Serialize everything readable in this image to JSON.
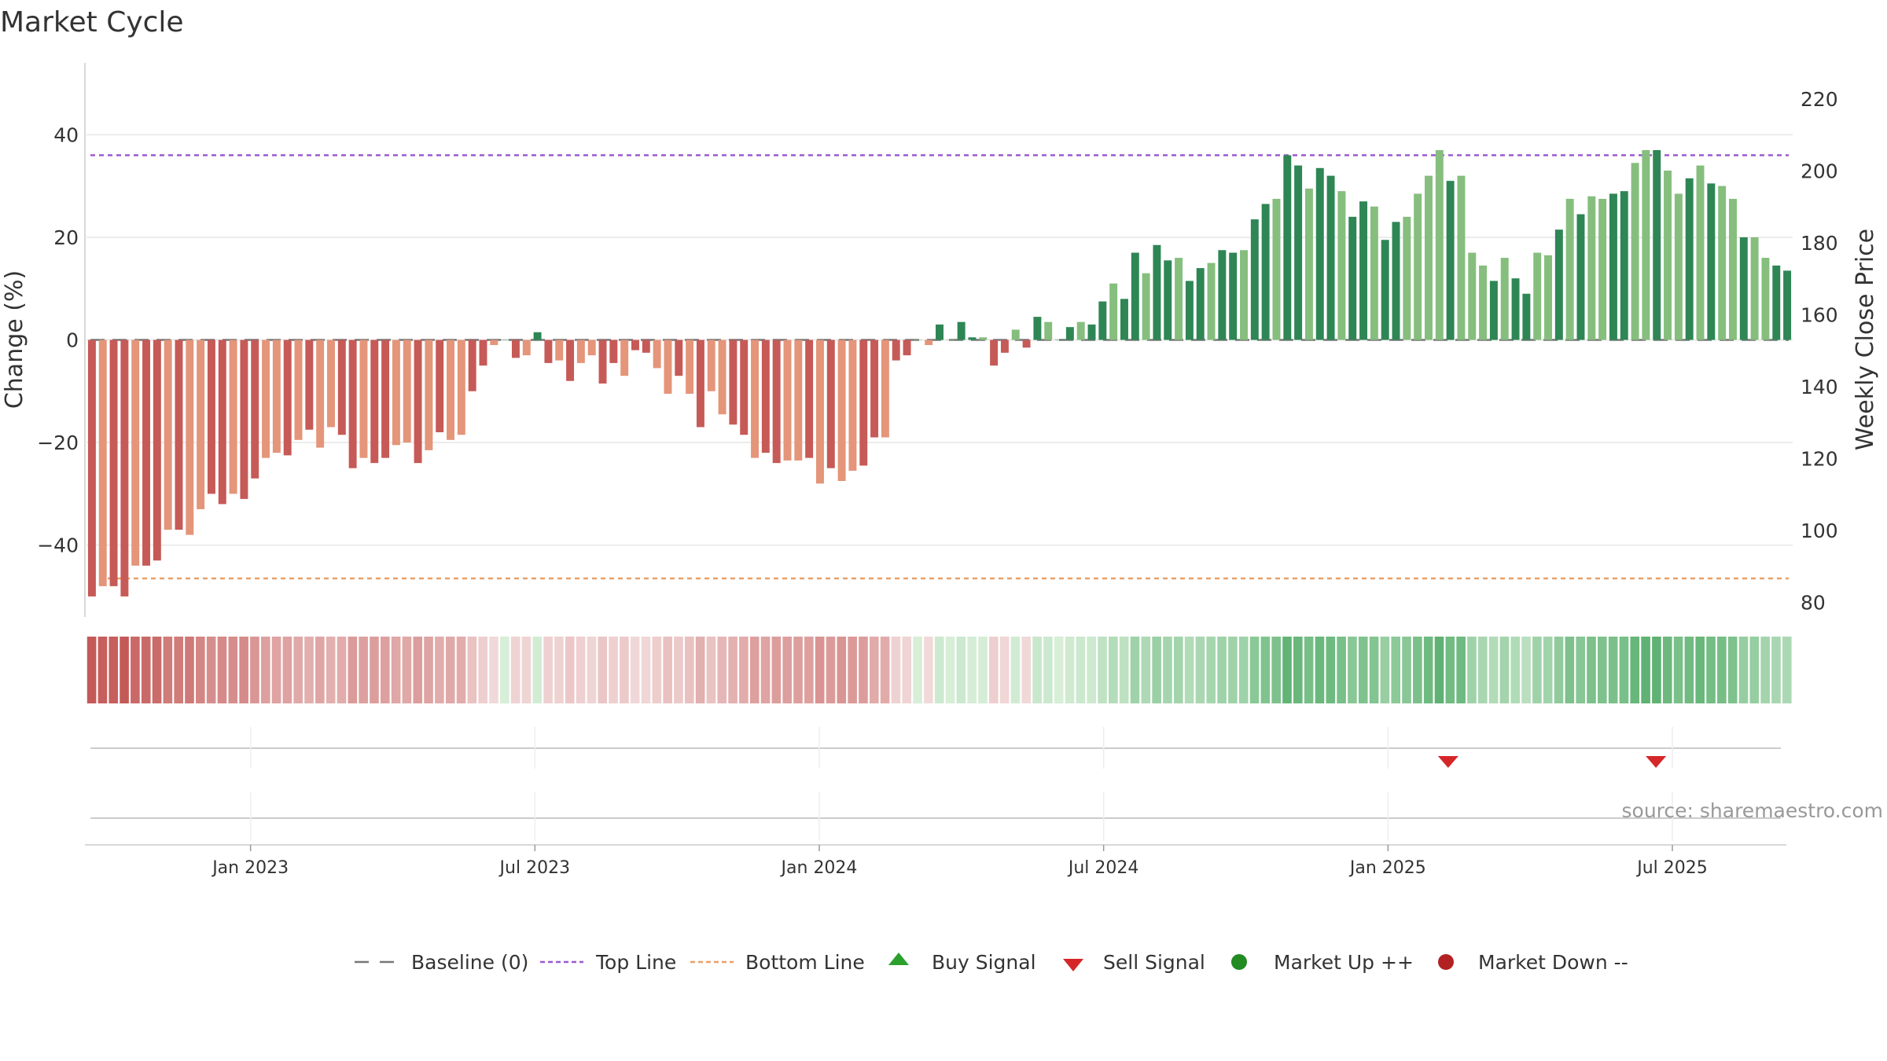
{
  "chart_data": {
    "type": "bar",
    "title": "Market Cycle",
    "ylabel": "Change (%)",
    "y2label": "Weekly Close Price",
    "ylim": [
      -54,
      54
    ],
    "y2lim": [
      76,
      230
    ],
    "yticks": [
      -40,
      -20,
      0,
      20,
      40
    ],
    "yticks_labels": [
      "−40",
      "−20",
      "0",
      "20",
      "40"
    ],
    "y2ticks": [
      80,
      100,
      120,
      140,
      160,
      180,
      200,
      220
    ],
    "top_line": 36,
    "bottom_line": -46.5,
    "xticks": [
      {
        "label": "Jan 2023",
        "week": 30
      },
      {
        "label": "Jul 2023",
        "week": 56
      },
      {
        "label": "Jan 2024",
        "week": 82
      },
      {
        "label": "Jul 2024",
        "week": 108
      },
      {
        "label": "Jan 2025",
        "week": 134
      },
      {
        "label": "Jul 2025",
        "week": 160
      }
    ],
    "first_week": 15,
    "last_week": 171,
    "values": [
      -50,
      -48,
      -48,
      -50,
      -44,
      -44,
      -43,
      -37,
      -37,
      -38,
      -33,
      -30,
      -32,
      -30,
      -31,
      -27,
      -23,
      -22,
      -22.5,
      -19.5,
      -17.5,
      -21,
      -17,
      -18.5,
      -25,
      -23,
      -24,
      -23,
      -20.5,
      -20,
      -24,
      -21.5,
      -18,
      -19.5,
      -18.5,
      -10,
      -5,
      -1,
      0,
      -3.5,
      -3,
      1.5,
      -4.5,
      -4,
      -8,
      -4.5,
      -3,
      -8.5,
      -4.5,
      -7,
      -2,
      -2.5,
      -5.5,
      -10.5,
      -7,
      -10.5,
      -17,
      -10,
      -14.5,
      -16.5,
      -18.5,
      -23,
      -22,
      -24,
      -23.5,
      -23.5,
      -23,
      -28,
      -25,
      -27.5,
      -25.5,
      -24.5,
      -19,
      -19,
      -4,
      -3,
      0,
      -1,
      3,
      0,
      3.5,
      0.5,
      0.5,
      -5,
      -2.5,
      2,
      -1.5,
      4.5,
      3.5,
      0,
      2.5,
      3.5,
      3,
      7.5,
      11,
      8,
      17,
      13,
      18.5,
      15.5,
      16,
      11.5,
      14,
      15,
      17.5,
      17,
      17.5,
      23.5,
      26.5,
      27.5,
      36,
      34,
      29.5,
      33.5,
      32,
      29,
      24,
      27,
      26,
      19.5,
      23,
      24,
      28.5,
      32,
      37,
      31,
      32,
      17,
      14.5,
      11.5,
      16,
      12,
      9,
      17,
      16.5,
      21.5,
      27.5,
      24.5,
      28,
      27.5,
      28.5,
      29,
      34.5,
      37,
      37,
      33,
      28.5,
      31.5,
      34,
      30.5,
      30,
      27.5,
      20,
      20,
      16,
      14.5,
      13.5
    ],
    "sell_signals": [
      {
        "week": 139.5,
        "label": "Sell Signal"
      },
      {
        "week": 158.5,
        "label": "Sell Signal"
      }
    ],
    "buy_signals": [],
    "colors": {
      "bar_dark_red": "#c65a57",
      "bar_light_red": "#e4957a",
      "bar_dark_green": "#2e8655",
      "bar_light_green": "#86be7e",
      "top_line": "#9b59d0",
      "bottom_line": "#e8a068",
      "baseline": "#777777",
      "sell": "#d62728",
      "buy": "#2ca02c",
      "market_up": "#228b22",
      "market_down": "#b22222",
      "grid": "#e6e6e6"
    }
  },
  "source": "source: sharemaestro.com",
  "legend": [
    {
      "key": "baseline",
      "label": "Baseline (0)"
    },
    {
      "key": "top",
      "label": "Top Line"
    },
    {
      "key": "bottom",
      "label": "Bottom Line"
    },
    {
      "key": "buy",
      "label": "Buy Signal"
    },
    {
      "key": "sell",
      "label": "Sell Signal"
    },
    {
      "key": "up",
      "label": "Market Up ++"
    },
    {
      "key": "down",
      "label": "Market Down --"
    }
  ]
}
